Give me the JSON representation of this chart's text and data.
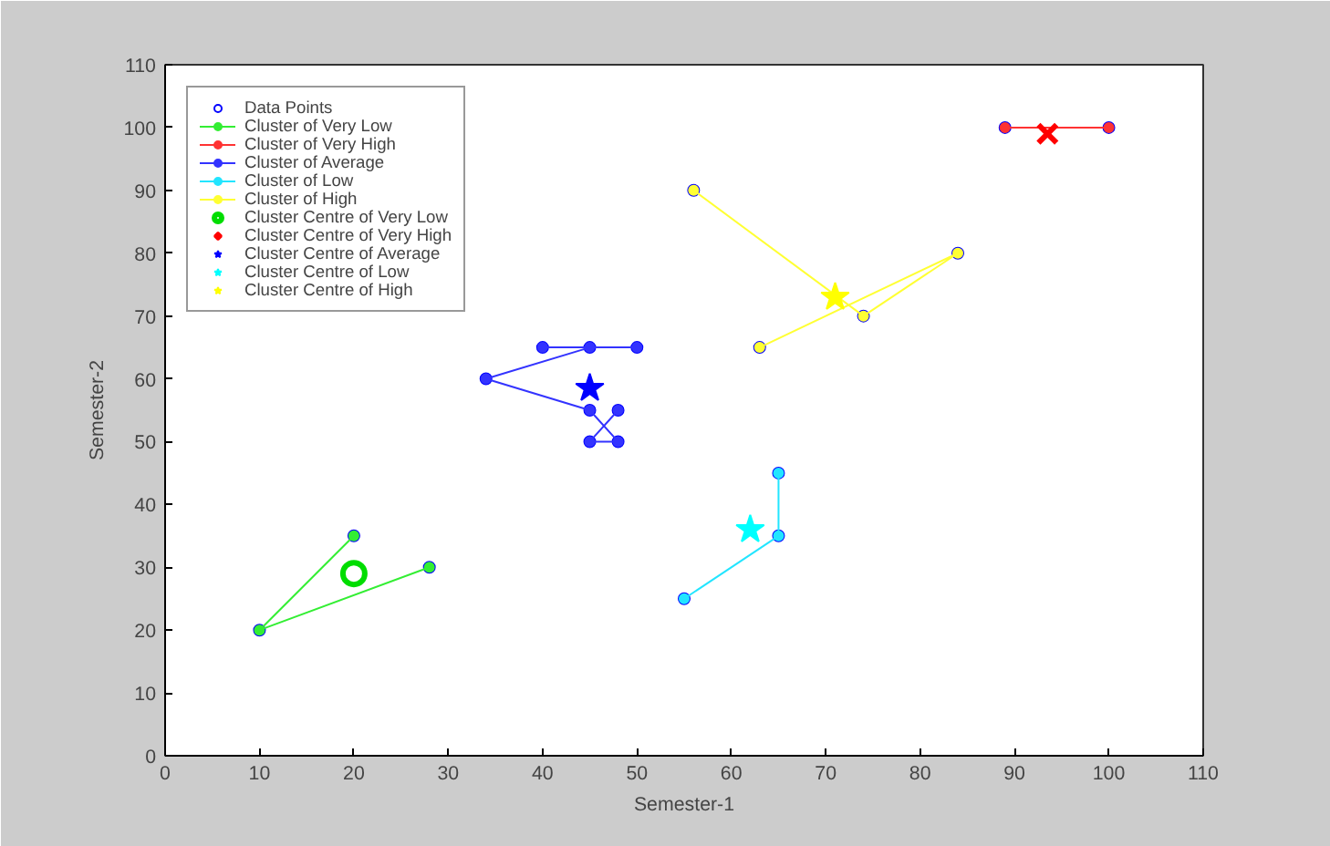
{
  "chart_data": {
    "type": "scatter",
    "xlabel": "Semester-1",
    "ylabel": "Semester-2",
    "xlim": [
      0,
      110
    ],
    "ylim": [
      0,
      110
    ],
    "xticks": [
      0,
      10,
      20,
      30,
      40,
      50,
      60,
      70,
      80,
      90,
      100,
      110
    ],
    "yticks": [
      0,
      10,
      20,
      30,
      40,
      50,
      60,
      70,
      80,
      90,
      100,
      110
    ],
    "grid": false,
    "legend": "top left",
    "series": [
      {
        "name": "Data Points",
        "marker": "circle",
        "color": "#0000ff",
        "x": [
          10,
          20,
          28,
          89,
          100,
          40,
          45,
          50,
          34,
          45,
          48,
          45,
          48,
          55,
          65,
          65,
          56,
          74,
          84,
          63
        ],
        "values": [
          20,
          35,
          30,
          100,
          100,
          65,
          65,
          65,
          60,
          55,
          55,
          50,
          50,
          25,
          35,
          45,
          90,
          70,
          80,
          65
        ]
      },
      {
        "name": "Cluster of Very Low",
        "type": "line",
        "marker": "circle",
        "color": "#33ee33",
        "x": [
          20,
          10,
          28
        ],
        "values": [
          35,
          20,
          30
        ]
      },
      {
        "name": "Cluster of Very High",
        "type": "line",
        "marker": "circle",
        "color": "#ff3333",
        "x": [
          89,
          100
        ],
        "values": [
          100,
          100
        ]
      },
      {
        "name": "Cluster of Average",
        "type": "line",
        "marker": "circle",
        "color": "#3333ff",
        "x": [
          40,
          50,
          45,
          34,
          45,
          48,
          45,
          48
        ],
        "values": [
          65,
          65,
          65,
          60,
          55,
          50,
          50,
          55
        ]
      },
      {
        "name": "Cluster of Low",
        "type": "line",
        "marker": "circle",
        "color": "#22e5ff",
        "x": [
          55,
          65,
          65
        ],
        "values": [
          25,
          35,
          45
        ]
      },
      {
        "name": "Cluster of High",
        "type": "line",
        "marker": "circle",
        "color": "#ffff33",
        "x": [
          56,
          74,
          84,
          63
        ],
        "values": [
          90,
          70,
          80,
          65
        ]
      },
      {
        "name": "Cluster Centre of Very Low",
        "marker": "circle",
        "color": "#00dd00",
        "x": [
          20
        ],
        "values": [
          29
        ]
      },
      {
        "name": "Cluster Centre of Very High",
        "marker": "cross",
        "color": "#ff0000",
        "x": [
          93.5
        ],
        "values": [
          99
        ]
      },
      {
        "name": "Cluster Centre of Average",
        "marker": "star",
        "color": "#0000ff",
        "x": [
          45
        ],
        "values": [
          58.5
        ]
      },
      {
        "name": "Cluster Centre of Low",
        "marker": "star",
        "color": "#00ffff",
        "x": [
          62
        ],
        "values": [
          36
        ]
      },
      {
        "name": "Cluster Centre of High",
        "marker": "star",
        "color": "#ffff00",
        "x": [
          71
        ],
        "values": [
          73
        ]
      }
    ]
  }
}
